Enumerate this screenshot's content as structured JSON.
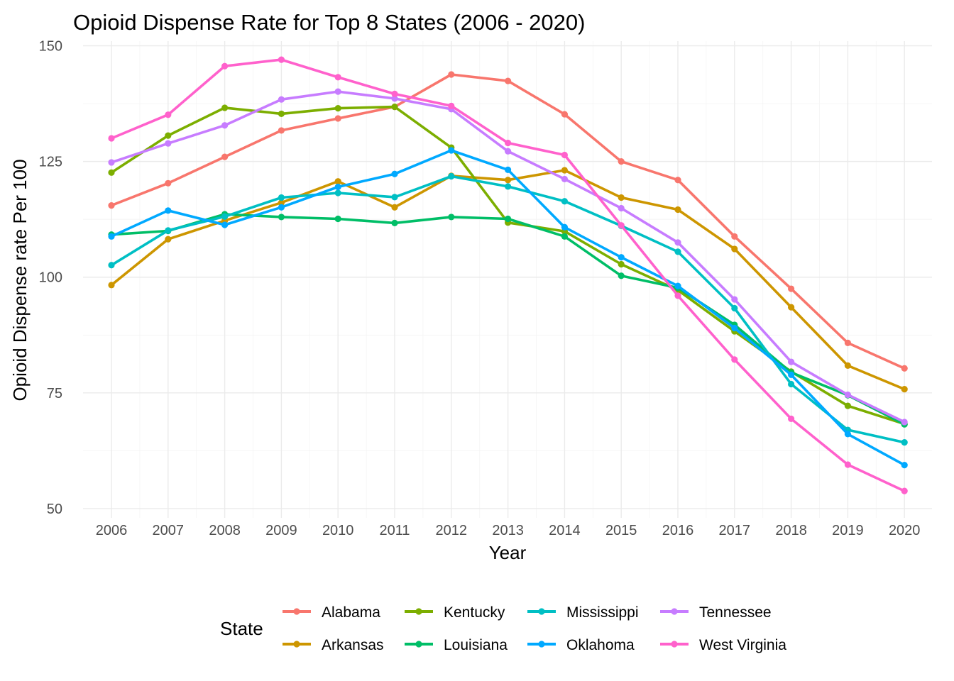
{
  "chart_data": {
    "type": "line",
    "title": "Opioid Dispense Rate for Top 8 States (2006 - 2020)",
    "xlabel": "Year",
    "ylabel": "Opioid Dispense rate Per 100",
    "x": [
      "2006",
      "2007",
      "2008",
      "2009",
      "2010",
      "2011",
      "2012",
      "2013",
      "2014",
      "2015",
      "2016",
      "2017",
      "2018",
      "2019",
      "2020"
    ],
    "ylim": [
      48,
      151
    ],
    "yticks": [
      50,
      75,
      100,
      125,
      150
    ],
    "grid": true,
    "legend": {
      "title": "State",
      "position": "bottom"
    },
    "series": [
      {
        "name": "Alabama",
        "color": "#F8766D",
        "values": [
          115.5,
          120.3,
          126.0,
          131.7,
          134.3,
          136.8,
          143.8,
          142.4,
          135.2,
          125.0,
          121.0,
          108.8,
          97.5,
          85.8,
          80.3
        ]
      },
      {
        "name": "Arkansas",
        "color": "#CD9600",
        "values": [
          98.3,
          108.2,
          112.2,
          116.1,
          120.7,
          115.1,
          121.9,
          121.0,
          123.1,
          117.2,
          114.6,
          106.1,
          93.5,
          80.9,
          75.8
        ]
      },
      {
        "name": "Kentucky",
        "color": "#7CAE00",
        "values": [
          122.6,
          130.6,
          136.6,
          135.3,
          136.5,
          136.8,
          128.0,
          111.8,
          109.9,
          102.8,
          97.2,
          88.3,
          79.6,
          72.2,
          68.3
        ]
      },
      {
        "name": "Louisiana",
        "color": "#00BE67",
        "values": [
          109.2,
          110.0,
          113.6,
          113.0,
          112.6,
          111.7,
          113.0,
          112.6,
          108.8,
          100.3,
          97.7,
          89.7,
          79.4,
          74.5,
          68.2
        ]
      },
      {
        "name": "Mississippi",
        "color": "#00BFC4",
        "values": [
          102.6,
          110.1,
          113.1,
          117.2,
          118.2,
          117.3,
          121.8,
          119.6,
          116.4,
          111.1,
          105.5,
          93.3,
          76.9,
          67.0,
          64.3
        ]
      },
      {
        "name": "Oklahoma",
        "color": "#00A9FF",
        "values": [
          108.8,
          114.4,
          111.3,
          115.1,
          119.5,
          122.3,
          127.4,
          123.2,
          110.8,
          104.3,
          98.1,
          89.0,
          78.9,
          66.1,
          59.4
        ]
      },
      {
        "name": "Tennessee",
        "color": "#C77CFF",
        "values": [
          124.8,
          128.9,
          132.8,
          138.4,
          140.1,
          138.6,
          136.3,
          127.2,
          121.2,
          114.9,
          107.5,
          95.2,
          81.7,
          74.6,
          68.7
        ]
      },
      {
        "name": "West Virginia",
        "color": "#FF61CC",
        "values": [
          130.0,
          135.1,
          145.6,
          147.0,
          143.2,
          139.6,
          137.0,
          129.0,
          126.4,
          111.2,
          96.0,
          82.2,
          69.4,
          59.5,
          53.8
        ]
      }
    ]
  }
}
